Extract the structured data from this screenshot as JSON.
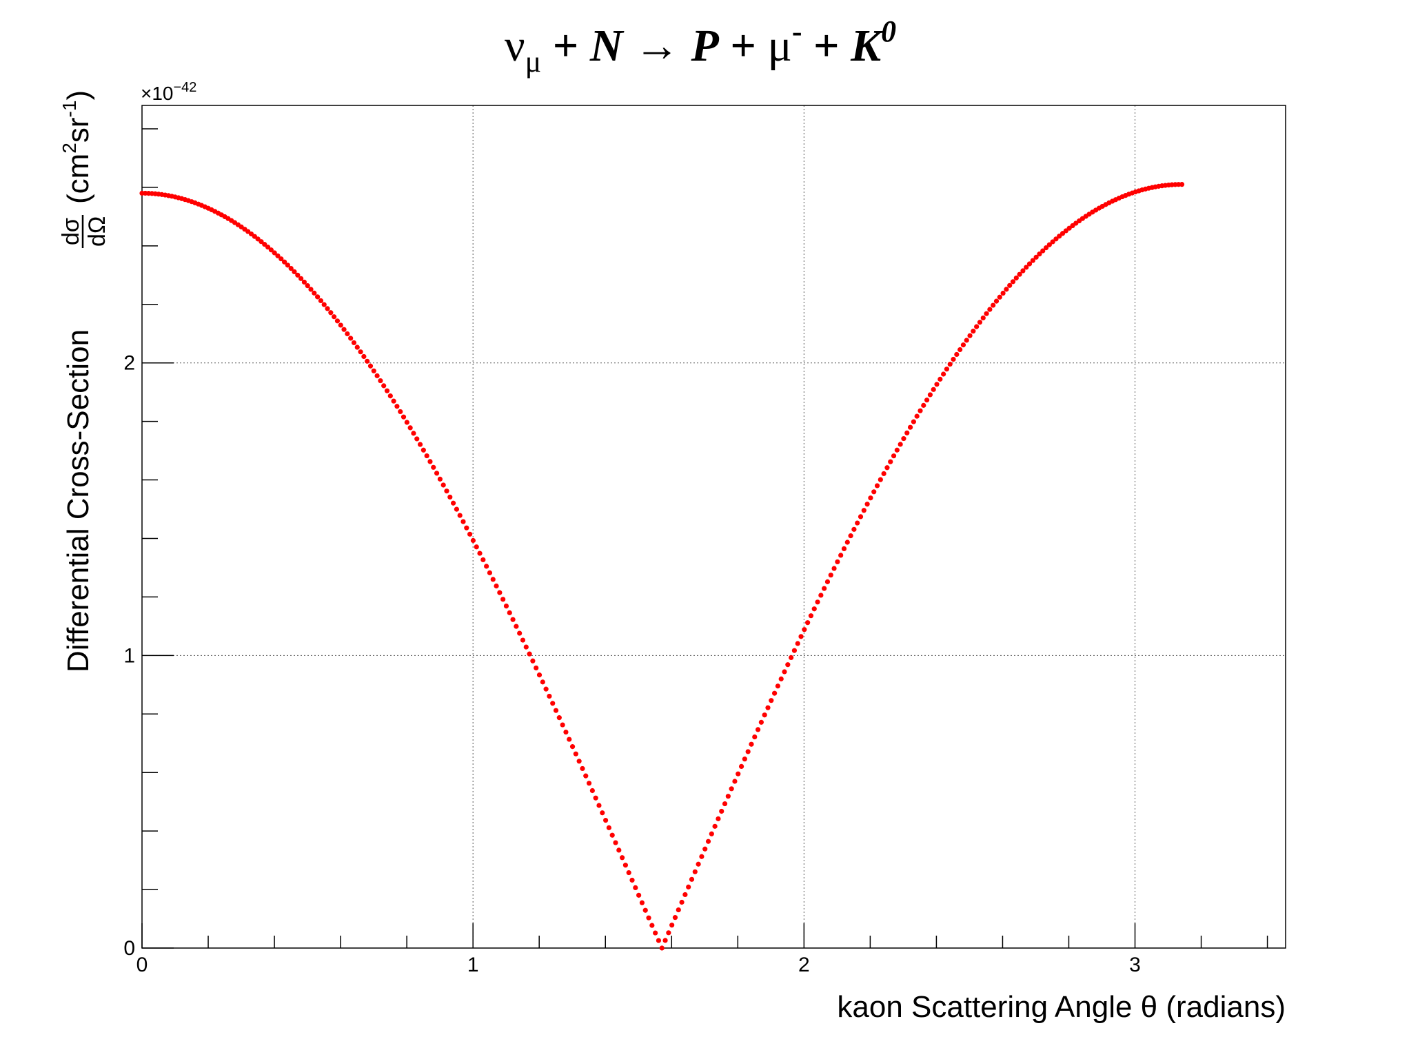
{
  "chart_data": {
    "type": "scatter",
    "title": {
      "nu": "ν",
      "nu_sub": "μ",
      "plus1": "+",
      "N": "N",
      "arrow": "→",
      "P": "P",
      "plus2": "+",
      "mu": "μ",
      "mu_sup": "-",
      "plus3": "+",
      "K": "K",
      "K_sup": "0"
    },
    "xlabel": "kaon Scattering Angle θ (radians)",
    "ylabel": {
      "prefix": "Differential Cross-Section",
      "frac_num": "dσ",
      "frac_den": "dΩ",
      "unit_open": "(cm",
      "unit_sup1": "2",
      "unit_mid": "sr",
      "unit_sup2": "-1",
      "unit_close": ")"
    },
    "y_multiplier": {
      "base": "×10",
      "exponent": "−42"
    },
    "xlim": [
      0,
      3.455
    ],
    "ylim": [
      0,
      2.88
    ],
    "x_ticks": [
      "0",
      "1",
      "2",
      "3"
    ],
    "x_tick_values": [
      0,
      1,
      2,
      3
    ],
    "y_ticks": [
      "0",
      "1",
      "2"
    ],
    "y_tick_values": [
      0,
      1,
      2
    ],
    "grid": true,
    "legend": "none",
    "series": [
      {
        "color": "#ff0000",
        "marker": "circle",
        "points": {
          "theta_start": 0,
          "theta_end": 3.1416,
          "count": 314,
          "left_branch": {
            "theta_max": 1.5708,
            "y_at_0": 2.58,
            "shape": "cos"
          },
          "right_branch": {
            "theta_min": 1.5708,
            "y_at_pi": 2.61,
            "shape": "cos"
          }
        }
      }
    ]
  }
}
